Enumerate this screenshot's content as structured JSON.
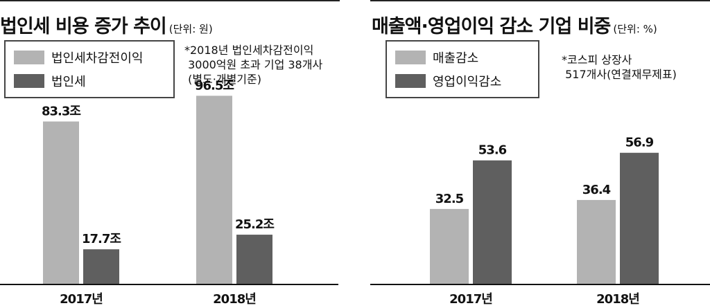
{
  "colors": {
    "light": "#b3b3b3",
    "dark": "#5f5f5f",
    "text": "#111111"
  },
  "left_panel": {
    "title": "법인세 비용 증가 추이",
    "unit": "(단위: 원)",
    "legend": [
      "법인세차감전이익",
      "법인세"
    ],
    "note": "*2018년 법인세차감전이익\n 3000억원 초과 기업 38개사\n (별도·개별기준)"
  },
  "right_panel": {
    "title": "매출액·영업이익 감소 기업 비중",
    "unit": "(단위: %)",
    "legend": [
      "매출감소",
      "영업이익감소"
    ],
    "note": "*코스피 상장사\n 517개사(연결재무제표)"
  },
  "chart_data": [
    {
      "type": "bar",
      "title": "법인세 비용 증가 추이",
      "categories": [
        "2017년",
        "2018년"
      ],
      "series": [
        {
          "name": "법인세차감전이익",
          "values": [
            83.3,
            96.5
          ],
          "labels": [
            "83.3조",
            "96.5조"
          ]
        },
        {
          "name": "법인세",
          "values": [
            17.7,
            25.2
          ],
          "labels": [
            "17.7조",
            "25.2조"
          ]
        }
      ],
      "xlabel": "",
      "ylabel": "",
      "ylim": [
        0,
        108
      ],
      "grid": false,
      "legend_position": "top-left"
    },
    {
      "type": "bar",
      "title": "매출액·영업이익 감소 기업 비중",
      "categories": [
        "2017년",
        "2018년"
      ],
      "series": [
        {
          "name": "매출감소",
          "values": [
            32.5,
            36.4
          ],
          "labels": [
            "32.5",
            "36.4"
          ]
        },
        {
          "name": "영업이익감소",
          "values": [
            53.6,
            56.9
          ],
          "labels": [
            "53.6",
            "56.9"
          ]
        }
      ],
      "xlabel": "",
      "ylabel": "",
      "ylim": [
        0,
        92
      ],
      "grid": false,
      "legend_position": "top-left"
    }
  ]
}
